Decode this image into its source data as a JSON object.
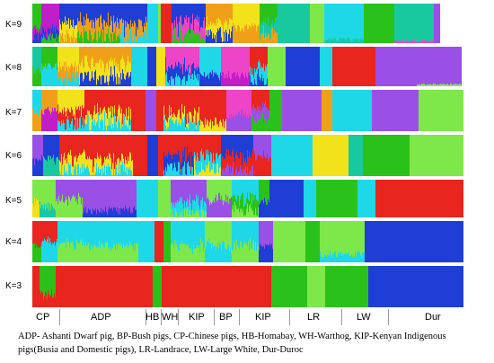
{
  "figure": {
    "panels": [
      {
        "label": "K=9"
      },
      {
        "label": "K=8"
      },
      {
        "label": "K=7"
      },
      {
        "label": "K=6"
      },
      {
        "label": "K=5"
      },
      {
        "label": "K=4"
      },
      {
        "label": "K=3"
      }
    ],
    "groups": [
      {
        "label": "CP"
      },
      {
        "label": "ADP"
      },
      {
        "label": "HB"
      },
      {
        "label": "WH"
      },
      {
        "label": "KIP"
      },
      {
        "label": "BP"
      },
      {
        "label": "KIP"
      },
      {
        "label": "LR"
      },
      {
        "label": "LW"
      },
      {
        "label": "Dur"
      }
    ],
    "caption": "ADP- Ashanti Dwarf pig, BP-Bush pigs, CP-Chinese pigs, HB-Homabay, WH-Warthog, KIP-Kenyan Indigenous pigs(Busia and Domestic pigs), LR-Landrace, LW-Large White, Dur-Duroc"
  }
}
